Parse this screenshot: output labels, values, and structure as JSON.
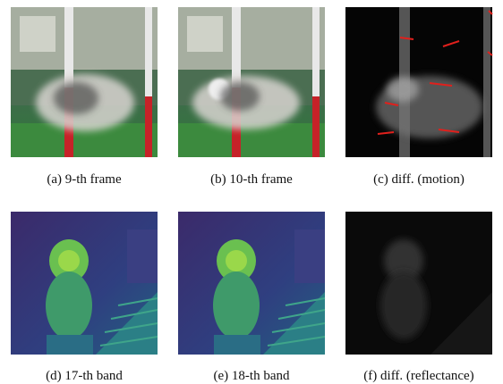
{
  "panels": [
    {
      "caption": "(a) 9-th frame"
    },
    {
      "caption": "(b) 10-th frame"
    },
    {
      "caption": "(c) diff. (motion)"
    },
    {
      "caption": "(d) 17-th band"
    },
    {
      "caption": "(e) 18-th band"
    },
    {
      "caption": "(f) diff. (reflectance)"
    }
  ]
}
